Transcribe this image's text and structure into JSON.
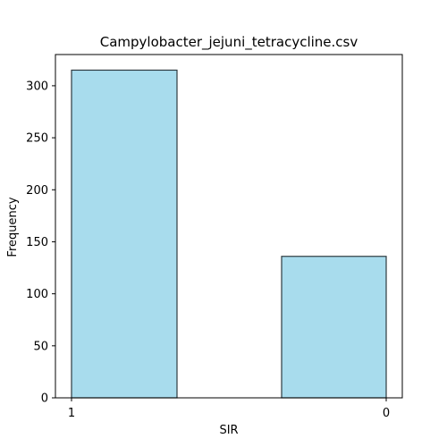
{
  "chart_data": {
    "type": "bar",
    "title": "Campylobacter_jejuni_tetracycline.csv",
    "xlabel": "SIR",
    "ylabel": "Frequency",
    "categories": [
      "1",
      "0"
    ],
    "values": [
      315,
      136
    ],
    "ylim": [
      0,
      330
    ],
    "yticks": [
      0,
      50,
      100,
      150,
      200,
      250,
      300
    ],
    "xticks": [
      "1",
      "0"
    ],
    "grid": false,
    "bar_fill": "#a8dced",
    "bar_edge": "#2e3b40",
    "axis_color": "#000000"
  }
}
